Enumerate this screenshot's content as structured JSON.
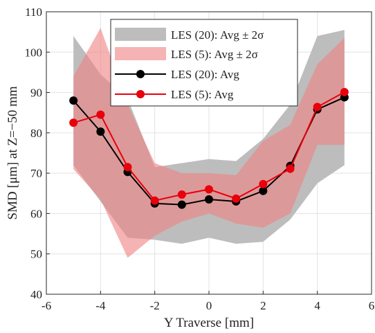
{
  "chart_data": {
    "type": "area",
    "xlabel": "Y Traverse [mm]",
    "ylabel": "SMD [μm] at Z=−50 mm",
    "xlim": [
      -6,
      6
    ],
    "ylim": [
      40,
      110
    ],
    "xticks": [
      -6,
      -4,
      -2,
      0,
      2,
      4,
      6
    ],
    "yticks": [
      40,
      50,
      60,
      70,
      80,
      90,
      100,
      110
    ],
    "xtick_labels": [
      "-6",
      "-4",
      "-2",
      "0",
      "2",
      "4",
      "6"
    ],
    "ytick_labels": [
      "40",
      "50",
      "60",
      "70",
      "80",
      "90",
      "100",
      "110"
    ],
    "grid": true,
    "legend_position": "top-center",
    "x": [
      -5,
      -4,
      -3,
      -2,
      -1,
      0,
      1,
      2,
      3,
      4,
      5
    ],
    "series": [
      {
        "name": "LES (20): Avg ± 2σ",
        "kind": "band",
        "color": "#bdbdbd",
        "upper": [
          104,
          94.5,
          88.5,
          71.5,
          72.5,
          73.5,
          73,
          78.5,
          87,
          104,
          105.5
        ],
        "lower": [
          72,
          63,
          54,
          53.5,
          52.5,
          54,
          52.5,
          53,
          58.5,
          67.5,
          72
        ]
      },
      {
        "name": "LES (5): Avg ± 2σ",
        "kind": "band",
        "color": "#f08080",
        "upper": [
          94,
          106,
          87,
          72.5,
          70,
          70,
          69.5,
          78,
          82,
          97,
          103.5
        ],
        "lower": [
          71,
          63.5,
          49,
          54.5,
          58,
          60,
          57.5,
          56.5,
          60,
          77,
          77
        ]
      },
      {
        "name": "LES (20): Avg",
        "kind": "line",
        "color": "#000000",
        "values": [
          88,
          80.3,
          70.3,
          62.5,
          62.2,
          63.5,
          63,
          65.6,
          71.8,
          85.8,
          88.8
        ]
      },
      {
        "name": "LES (5): Avg",
        "kind": "line",
        "color": "#e8000b",
        "values": [
          82.5,
          84.5,
          71.5,
          63.2,
          64.7,
          66,
          63.7,
          67.3,
          71.1,
          86.4,
          90.1
        ]
      }
    ],
    "legend": [
      {
        "label": "LES (20): Avg ± 2σ"
      },
      {
        "label": "LES (5): Avg ± 2σ"
      },
      {
        "label": "LES (20): Avg"
      },
      {
        "label": "LES (5): Avg"
      }
    ]
  }
}
